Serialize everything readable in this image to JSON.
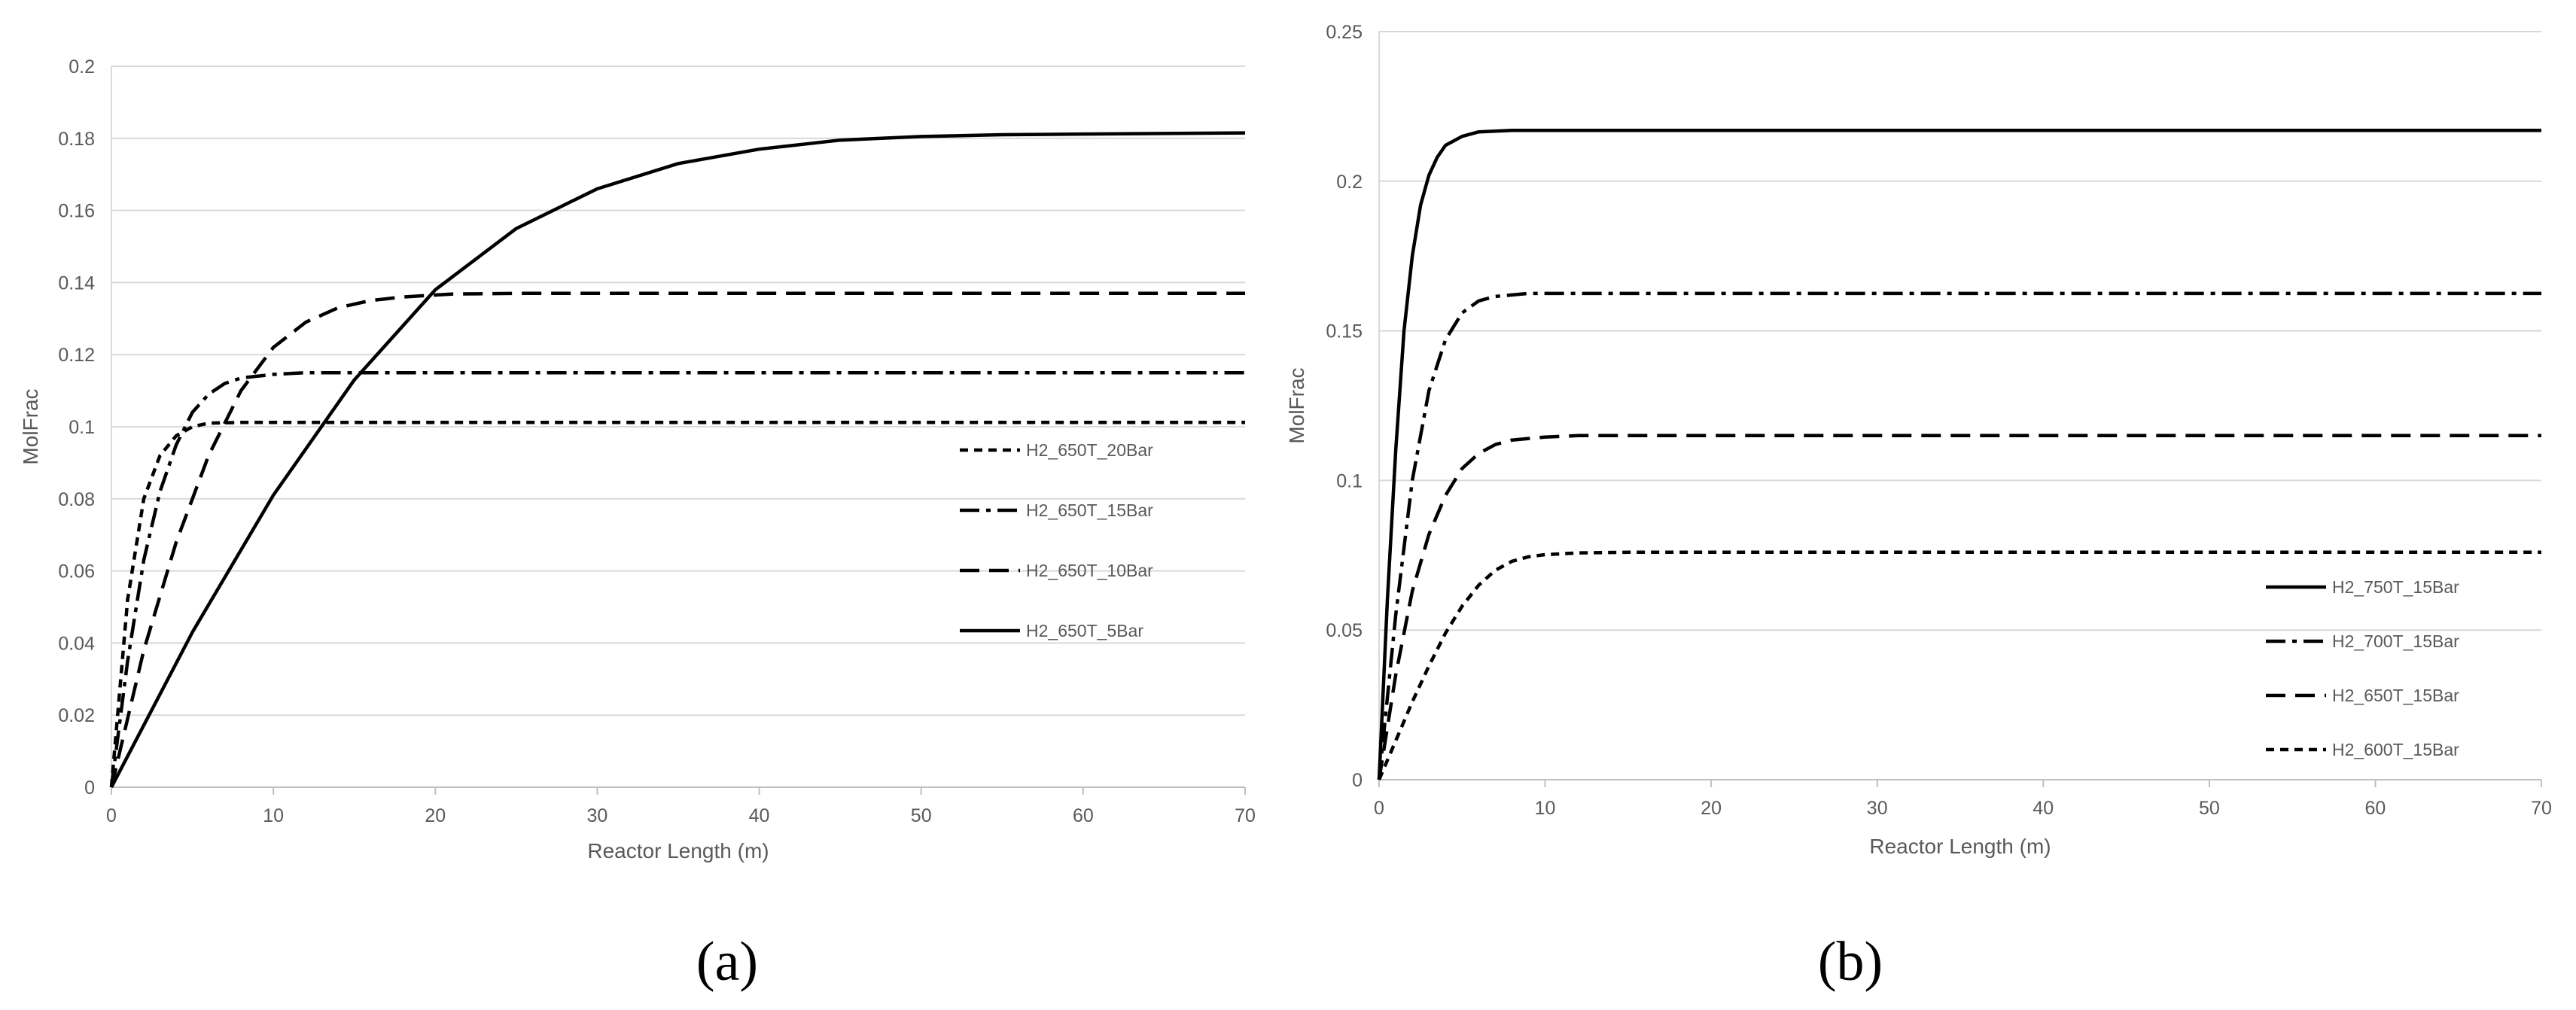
{
  "chart_data": [
    {
      "panel_label": "(a)",
      "type": "line",
      "xlabel": "Reactor Length (m)",
      "ylabel": "MolFrac",
      "xlim": [
        0,
        70
      ],
      "ylim": [
        0,
        0.2
      ],
      "x_ticks": [
        "0",
        "10",
        "20",
        "30",
        "40",
        "50",
        "60",
        "70"
      ],
      "y_ticks": [
        "0",
        "0.02",
        "0.04",
        "0.06",
        "0.08",
        "0.1",
        "0.12",
        "0.14",
        "0.16",
        "0.18",
        "0.2"
      ],
      "grid": "horizontal",
      "legend_position": "right",
      "series": [
        {
          "name": "H2_650T_20Bar",
          "dash": "short-dash",
          "points": [
            [
              0,
              0
            ],
            [
              1,
              0.052
            ],
            [
              2,
              0.08
            ],
            [
              3,
              0.092
            ],
            [
              4,
              0.0975
            ],
            [
              5,
              0.1
            ],
            [
              6,
              0.101
            ],
            [
              8,
              0.1012
            ],
            [
              70,
              0.1012
            ]
          ]
        },
        {
          "name": "H2_650T_15Bar",
          "dash": "dash-dot",
          "points": [
            [
              0,
              0
            ],
            [
              1,
              0.035
            ],
            [
              2,
              0.063
            ],
            [
              3,
              0.082
            ],
            [
              4,
              0.095
            ],
            [
              5,
              0.104
            ],
            [
              6,
              0.109
            ],
            [
              7,
              0.112
            ],
            [
              8,
              0.1135
            ],
            [
              10,
              0.1145
            ],
            [
              12,
              0.115
            ],
            [
              70,
              0.115
            ]
          ]
        },
        {
          "name": "H2_650T_10Bar",
          "dash": "dash",
          "points": [
            [
              0,
              0
            ],
            [
              2,
              0.038
            ],
            [
              4,
              0.068
            ],
            [
              6,
              0.092
            ],
            [
              8,
              0.11
            ],
            [
              10,
              0.122
            ],
            [
              12,
              0.129
            ],
            [
              14,
              0.133
            ],
            [
              16,
              0.135
            ],
            [
              18,
              0.136
            ],
            [
              21,
              0.1368
            ],
            [
              25,
              0.137
            ],
            [
              70,
              0.137
            ]
          ]
        },
        {
          "name": "H2_650T_5Bar",
          "dash": "solid",
          "points": [
            [
              0,
              0
            ],
            [
              5,
              0.043
            ],
            [
              10,
              0.081
            ],
            [
              15,
              0.113
            ],
            [
              20,
              0.138
            ],
            [
              25,
              0.155
            ],
            [
              30,
              0.166
            ],
            [
              35,
              0.173
            ],
            [
              40,
              0.177
            ],
            [
              45,
              0.1795
            ],
            [
              50,
              0.1805
            ],
            [
              55,
              0.181
            ],
            [
              60,
              0.1812
            ],
            [
              70,
              0.1815
            ]
          ]
        }
      ]
    },
    {
      "panel_label": "(b)",
      "type": "line",
      "xlabel": "Reactor Length (m)",
      "ylabel": "MolFrac",
      "xlim": [
        0,
        70
      ],
      "ylim": [
        0,
        0.25
      ],
      "x_ticks": [
        "0",
        "10",
        "20",
        "30",
        "40",
        "50",
        "60",
        "70"
      ],
      "y_ticks": [
        "0",
        "0.05",
        "0.1",
        "0.15",
        "0.2",
        "0.25"
      ],
      "grid": "horizontal",
      "legend_position": "bottom-right",
      "series": [
        {
          "name": "H2_750T_15Bar",
          "dash": "solid",
          "points": [
            [
              0,
              0
            ],
            [
              0.5,
              0.06
            ],
            [
              1,
              0.11
            ],
            [
              1.5,
              0.15
            ],
            [
              2,
              0.175
            ],
            [
              2.5,
              0.192
            ],
            [
              3,
              0.202
            ],
            [
              3.5,
              0.208
            ],
            [
              4,
              0.212
            ],
            [
              5,
              0.215
            ],
            [
              6,
              0.2165
            ],
            [
              8,
              0.217
            ],
            [
              70,
              0.217
            ]
          ]
        },
        {
          "name": "H2_700T_15Bar",
          "dash": "dash-dot",
          "points": [
            [
              0,
              0
            ],
            [
              1,
              0.055
            ],
            [
              2,
              0.1
            ],
            [
              3,
              0.13
            ],
            [
              4,
              0.147
            ],
            [
              5,
              0.156
            ],
            [
              6,
              0.16
            ],
            [
              7,
              0.1615
            ],
            [
              9,
              0.1625
            ],
            [
              70,
              0.1625
            ]
          ]
        },
        {
          "name": "H2_650T_15Bar",
          "dash": "dash",
          "points": [
            [
              0,
              0
            ],
            [
              1,
              0.035
            ],
            [
              2,
              0.063
            ],
            [
              3,
              0.082
            ],
            [
              4,
              0.095
            ],
            [
              5,
              0.104
            ],
            [
              6,
              0.109
            ],
            [
              7,
              0.112
            ],
            [
              8,
              0.1135
            ],
            [
              10,
              0.1145
            ],
            [
              12,
              0.115
            ],
            [
              70,
              0.115
            ]
          ]
        },
        {
          "name": "H2_600T_15Bar",
          "dash": "short-dash",
          "points": [
            [
              0,
              0
            ],
            [
              1,
              0.013
            ],
            [
              2,
              0.026
            ],
            [
              3,
              0.038
            ],
            [
              4,
              0.049
            ],
            [
              5,
              0.058
            ],
            [
              6,
              0.065
            ],
            [
              7,
              0.07
            ],
            [
              8,
              0.073
            ],
            [
              9,
              0.0745
            ],
            [
              10,
              0.0752
            ],
            [
              12,
              0.0758
            ],
            [
              15,
              0.076
            ],
            [
              70,
              0.076
            ]
          ]
        }
      ]
    }
  ]
}
